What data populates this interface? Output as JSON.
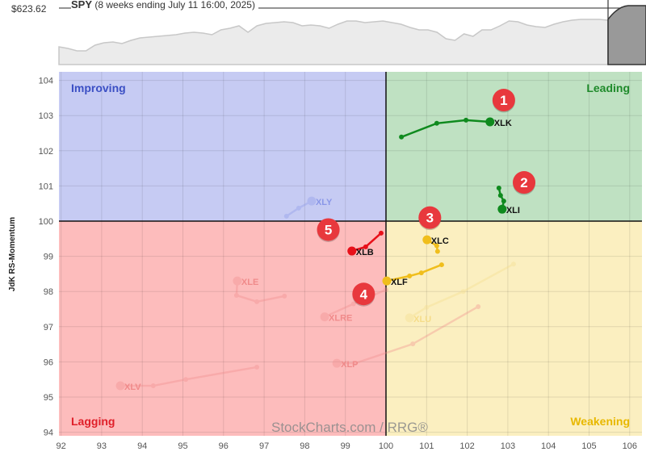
{
  "header": {
    "symbol": "SPY",
    "period": "(8 weeks ending July 11 16:00, 2025)",
    "price": "$623.62"
  },
  "chart_data": {
    "type": "scatter",
    "subtype": "relative-rotation-graph",
    "xlim": [
      92,
      106.3
    ],
    "ylim": [
      94,
      104.2
    ],
    "xticks": [
      92,
      93,
      94,
      95,
      96,
      97,
      98,
      99,
      100,
      101,
      102,
      103,
      104,
      105,
      106
    ],
    "yticks": [
      94,
      95,
      96,
      97,
      98,
      99,
      100,
      101,
      102,
      103,
      104
    ],
    "ylabel": "JdK RS-Momentum",
    "grid": true,
    "quadrants": [
      {
        "name": "Improving",
        "color": "#c6cbf3",
        "text_color": "#3b4fc4",
        "position": "top-left"
      },
      {
        "name": "Leading",
        "color": "#bfe1c2",
        "text_color": "#1e8a2a",
        "position": "top-right"
      },
      {
        "name": "Lagging",
        "color": "#fdbcbc",
        "text_color": "#e0202a",
        "position": "bottom-left"
      },
      {
        "name": "Weakening",
        "color": "#fbefc0",
        "text_color": "#e8b800",
        "position": "bottom-right"
      }
    ],
    "watermark": "StockCharts.com / RRG®",
    "series": [
      {
        "name": "XLK",
        "color": "#0f8a1e",
        "highlighted": true,
        "points": [
          [
            100.38,
            102.39
          ],
          [
            101.25,
            102.78
          ],
          [
            101.97,
            102.87
          ],
          [
            102.56,
            102.82
          ]
        ]
      },
      {
        "name": "XLI",
        "color": "#0f8a1e",
        "highlighted": true,
        "points": [
          [
            102.78,
            100.94
          ],
          [
            102.82,
            100.73
          ],
          [
            102.9,
            100.57
          ],
          [
            102.86,
            100.34
          ]
        ]
      },
      {
        "name": "XLC",
        "color": "#f0be1c",
        "highlighted": true,
        "points": [
          [
            101.27,
            99.14
          ],
          [
            101.25,
            99.3
          ],
          [
            101.01,
            99.47
          ]
        ]
      },
      {
        "name": "XLF",
        "color": "#f0be1c",
        "highlighted": true,
        "points": [
          [
            101.37,
            98.76
          ],
          [
            100.87,
            98.53
          ],
          [
            100.58,
            98.44
          ],
          [
            100.02,
            98.3
          ]
        ]
      },
      {
        "name": "XLB",
        "color": "#e8101a",
        "highlighted": true,
        "points": [
          [
            99.88,
            99.66
          ],
          [
            99.5,
            99.27
          ],
          [
            99.16,
            99.15
          ]
        ]
      },
      {
        "name": "XLY",
        "color": "#8a97e8",
        "highlighted": false,
        "points": [
          [
            97.55,
            100.14
          ],
          [
            97.85,
            100.37
          ],
          [
            98.17,
            100.57
          ]
        ]
      },
      {
        "name": "XLE",
        "color": "#f08a8a",
        "highlighted": false,
        "points": [
          [
            97.5,
            97.87
          ],
          [
            96.82,
            97.71
          ],
          [
            96.32,
            97.89
          ],
          [
            96.34,
            98.3
          ]
        ]
      },
      {
        "name": "XLRE",
        "color": "#f08a8a",
        "highlighted": false,
        "points": [
          [
            100.0,
            98.05
          ],
          [
            99.2,
            97.65
          ],
          [
            98.49,
            97.28
          ]
        ]
      },
      {
        "name": "XLU",
        "color": "#f5dc88",
        "highlighted": false,
        "points": [
          [
            103.14,
            98.78
          ],
          [
            101.9,
            98.0
          ],
          [
            101.0,
            97.55
          ],
          [
            100.58,
            97.25
          ]
        ]
      },
      {
        "name": "XLP",
        "color": "#f08a8a",
        "highlighted": false,
        "points": [
          [
            102.27,
            97.57
          ],
          [
            100.66,
            96.51
          ],
          [
            99.24,
            95.96
          ],
          [
            98.79,
            95.96
          ]
        ]
      },
      {
        "name": "XLV",
        "color": "#f08a8a",
        "highlighted": false,
        "points": [
          [
            96.82,
            95.85
          ],
          [
            95.07,
            95.5
          ],
          [
            94.27,
            95.32
          ],
          [
            93.46,
            95.32
          ]
        ]
      }
    ],
    "annotations": [
      {
        "label": "1",
        "at": [
          102.9,
          103.44
        ]
      },
      {
        "label": "2",
        "at": [
          103.4,
          101.1
        ]
      },
      {
        "label": "3",
        "at": [
          101.08,
          100.1
        ]
      },
      {
        "label": "4",
        "at": [
          99.45,
          97.93
        ]
      },
      {
        "label": "5",
        "at": [
          98.58,
          99.76
        ]
      }
    ],
    "spy_strip": [
      48,
      50,
      53,
      53,
      46,
      43,
      42,
      44,
      40,
      37,
      36,
      35,
      34,
      33,
      31,
      30,
      31,
      33,
      27,
      25,
      22,
      30,
      22,
      19,
      18,
      17,
      18,
      22,
      21,
      22,
      25,
      20,
      16,
      16,
      18,
      17,
      16,
      18,
      20,
      24,
      27,
      27,
      30,
      38,
      40,
      32,
      35,
      27,
      27,
      22,
      16,
      17,
      21,
      23,
      24,
      20,
      17,
      15,
      14,
      14,
      14,
      15
    ]
  }
}
